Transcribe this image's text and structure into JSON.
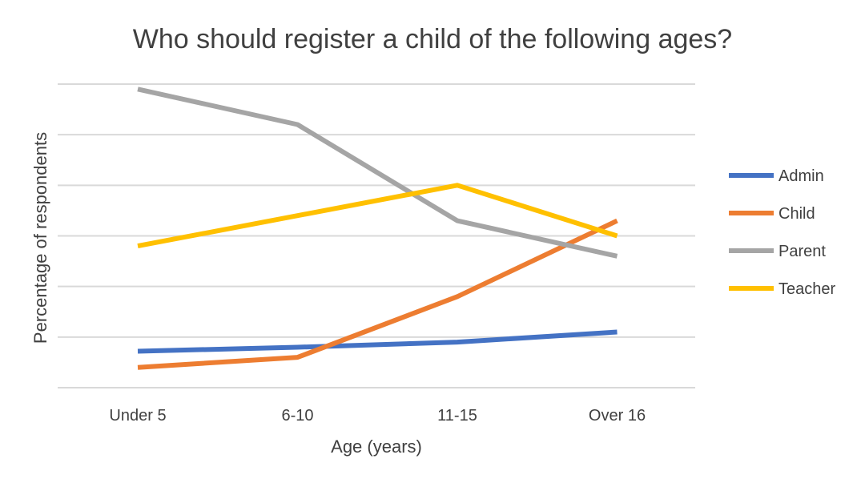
{
  "chart_data": {
    "type": "line",
    "title": "Who should register a child of the following ages?",
    "xlabel": "Age (years)",
    "ylabel": "Percentage of respondents",
    "categories": [
      "Under 5",
      "6-10",
      "11-15",
      "Over 16"
    ],
    "ylim": [
      0,
      6
    ],
    "y_gridlines": [
      0,
      1,
      2,
      3,
      4,
      5,
      6
    ],
    "y_tick_labels_shown": false,
    "grid": true,
    "legend_position": "right",
    "series": [
      {
        "name": "Admin",
        "color": "#4472C4",
        "values": [
          0.72,
          0.8,
          0.9,
          1.1
        ]
      },
      {
        "name": "Child",
        "color": "#ED7D31",
        "values": [
          0.4,
          0.6,
          1.8,
          3.3
        ]
      },
      {
        "name": "Parent",
        "color": "#A5A5A5",
        "values": [
          5.9,
          5.2,
          3.3,
          2.6
        ]
      },
      {
        "name": "Teacher",
        "color": "#FFC000",
        "values": [
          2.8,
          3.4,
          4.0,
          3.0
        ]
      }
    ]
  }
}
